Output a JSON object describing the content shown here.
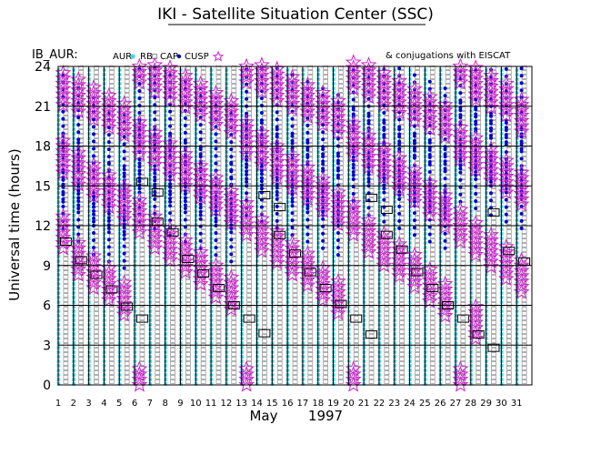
{
  "header": {
    "title": "IKI - Satellite Situation Center (SSC)"
  },
  "chart_data": {
    "type": "scatter",
    "panel_label": "IB_AUR:",
    "legend": {
      "aur": "AUR",
      "rb": "RB",
      "cap": "CAP",
      "cusp": "CUSP"
    },
    "note": "& conjugations with EISCAT",
    "ylabel": "Universal time (hours)",
    "ylim": [
      0,
      24
    ],
    "yticks": [
      "0",
      "3",
      "6",
      "9",
      "12",
      "15",
      "18",
      "21",
      "24"
    ],
    "xlabel_month": "May",
    "xlabel_year": "1997",
    "xlim": [
      1,
      32
    ],
    "days": [
      "1",
      "2",
      "3",
      "4",
      "5",
      "6",
      "7",
      "8",
      "9",
      "10",
      "11",
      "12",
      "13",
      "14",
      "15",
      "16",
      "17",
      "18",
      "19",
      "20",
      "21",
      "22",
      "23",
      "24",
      "25",
      "26",
      "27",
      "28",
      "29",
      "30",
      "31"
    ],
    "colors": {
      "aur": "#33ccdd",
      "rb": "#909090",
      "cap": "#0000cc",
      "cusp": "#cc22cc",
      "conj": "#000000"
    },
    "passes": [
      {
        "day": 1,
        "cusp": [
          22.3,
          17.2,
          11.5
        ],
        "cap": [
          20.5,
          16.5,
          14
        ],
        "conj": [
          10.8
        ]
      },
      {
        "day": 2,
        "cusp": [
          21.8,
          16.3,
          9.5
        ],
        "cap": [
          19.5,
          16,
          13
        ],
        "conj": [
          9.4
        ]
      },
      {
        "day": 3,
        "cusp": [
          21.2,
          15.4,
          8.5
        ],
        "cap": [
          18.8,
          15,
          12
        ],
        "conj": [
          8.3
        ]
      },
      {
        "day": 4,
        "cusp": [
          20.6,
          14.6,
          7.6
        ],
        "cap": [
          18.2,
          14.5,
          11.5
        ],
        "conj": [
          7.2
        ]
      },
      {
        "day": 5,
        "cusp": [
          20,
          13.7,
          6.5
        ],
        "cap": [
          17.5,
          14,
          11
        ],
        "conj": [
          5.9
        ]
      },
      {
        "day": 6,
        "cusp": [
          24,
          18.6,
          12.7,
          0
        ],
        "cap": [
          21.5,
          17.5,
          14.5
        ],
        "conj": [
          15.3,
          5
        ]
      },
      {
        "day": 7,
        "cusp": [
          23.3,
          17.8,
          11.5
        ],
        "cap": [
          21,
          17,
          14
        ],
        "conj": [
          12.3,
          14.5
        ]
      },
      {
        "day": 8,
        "cusp": [
          22.7,
          17,
          10.6
        ],
        "cap": [
          20.5,
          16.5,
          13.5
        ],
        "conj": [
          11.5
        ]
      },
      {
        "day": 9,
        "cusp": [
          22.1,
          16.2,
          9.7
        ],
        "cap": [
          20,
          16,
          13
        ],
        "conj": [
          9.5
        ]
      },
      {
        "day": 10,
        "cusp": [
          21.5,
          15.3,
          8.8
        ],
        "cap": [
          19.5,
          15.5,
          12.5
        ],
        "conj": [
          8.4
        ]
      },
      {
        "day": 11,
        "cusp": [
          20.8,
          14.4,
          7.8
        ],
        "cap": [
          18.8,
          15,
          12
        ],
        "conj": [
          7.3
        ]
      },
      {
        "day": 12,
        "cusp": [
          20.2,
          13.4,
          6.9
        ],
        "cap": [
          18.2,
          14.5,
          11.5
        ],
        "conj": [
          6
        ]
      },
      {
        "day": 13,
        "cusp": [
          24,
          18.6,
          12.5,
          0
        ],
        "cap": [
          22,
          18,
          15
        ],
        "conj": [
          5
        ]
      },
      {
        "day": 14,
        "cusp": [
          23.3,
          17.8,
          11.3
        ],
        "cap": [
          21.5,
          17.5,
          14.5
        ],
        "conj": [
          14.3,
          3.9
        ]
      },
      {
        "day": 15,
        "cusp": [
          22.6,
          16.8,
          10.4
        ],
        "cap": [
          21,
          17,
          14
        ],
        "conj": [
          11.3,
          13.4
        ]
      },
      {
        "day": 16,
        "cusp": [
          22,
          16,
          9.5
        ],
        "cap": [
          20.5,
          16.5,
          13.5
        ],
        "conj": [
          9.9
        ]
      },
      {
        "day": 17,
        "cusp": [
          21.4,
          15.2,
          8.7
        ],
        "cap": [
          20,
          16,
          13
        ],
        "conj": [
          8.5
        ]
      },
      {
        "day": 18,
        "cusp": [
          20.8,
          14.3,
          7.6
        ],
        "cap": [
          19.5,
          15.5,
          12.5
        ],
        "conj": [
          7.3
        ]
      },
      {
        "day": 19,
        "cusp": [
          20.2,
          13.3,
          6.6
        ],
        "cap": [
          19,
          15,
          12
        ],
        "conj": [
          6.1
        ]
      },
      {
        "day": 20,
        "cusp": [
          23.5,
          18.5,
          12.5,
          0
        ],
        "cap": [
          22.5,
          18.5,
          15.5
        ],
        "conj": [
          5
        ]
      },
      {
        "day": 21,
        "cusp": [
          22.9,
          17.6,
          11.2
        ],
        "cap": [
          22,
          18,
          15
        ],
        "conj": [
          3.8,
          14.1
        ]
      },
      {
        "day": 22,
        "cusp": [
          22.3,
          16.8,
          10.2
        ],
        "cap": [
          21.5,
          17.5,
          14.5
        ],
        "conj": [
          11.3,
          13.2
        ]
      },
      {
        "day": 23,
        "cusp": [
          21.7,
          15.9,
          9.4
        ],
        "cap": [
          21,
          17,
          14
        ],
        "conj": [
          10.2
        ]
      },
      {
        "day": 24,
        "cusp": [
          21.1,
          15,
          8.6
        ],
        "cap": [
          20.5,
          16.5,
          13.5
        ],
        "conj": [
          8.5
        ]
      },
      {
        "day": 25,
        "cusp": [
          20.5,
          14,
          7.5
        ],
        "cap": [
          20,
          16,
          13
        ],
        "conj": [
          7.3
        ]
      },
      {
        "day": 26,
        "cusp": [
          19.9,
          13.1,
          6.4
        ],
        "cap": [
          19.5,
          15.5,
          12.5
        ],
        "conj": [
          6
        ]
      },
      {
        "day": 27,
        "cusp": [
          24,
          18.2,
          12,
          0
        ],
        "cap": [
          23,
          19,
          16
        ],
        "conj": [
          5
        ]
      },
      {
        "day": 28,
        "cusp": [
          22.7,
          17.4,
          11,
          4.7
        ],
        "cap": [
          22.5,
          18.5,
          15.5
        ],
        "conj": [
          3.8
        ]
      },
      {
        "day": 29,
        "cusp": [
          22.1,
          16.6,
          10.1
        ],
        "cap": [
          22,
          18,
          15
        ],
        "conj": [
          2.8,
          13
        ]
      },
      {
        "day": 30,
        "cusp": [
          21.5,
          15.7,
          9.2
        ],
        "cap": [
          21.5,
          17.5,
          14.5
        ],
        "conj": [
          10.1
        ]
      },
      {
        "day": 31,
        "cusp": [
          20.3,
          14.8,
          8.2
        ],
        "cap": [
          21,
          17,
          14
        ],
        "conj": [
          9.3
        ]
      }
    ]
  }
}
